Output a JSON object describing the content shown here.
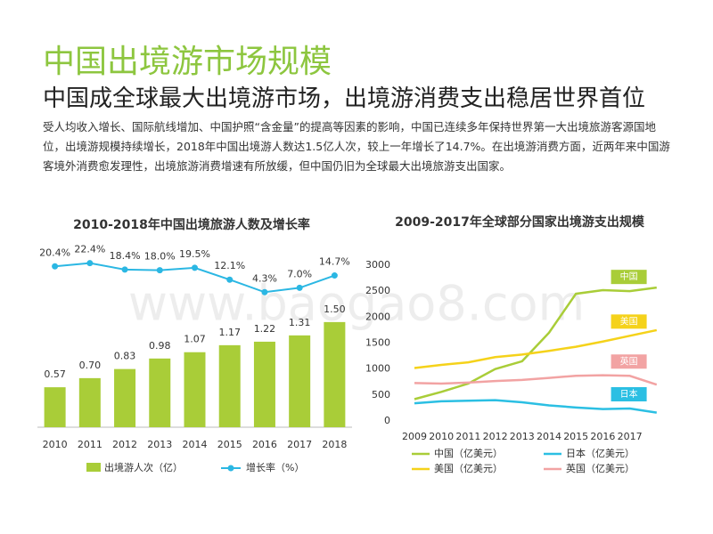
{
  "header": {
    "title": "中国出境游市场规模",
    "subtitle": "中国成全球最大出境游市场，出境游消费支出稳居世界首位"
  },
  "body": "受人均收入增长、国际航线增加、中国护照“含金量”的提高等因素的影响，中国已连续多年保持世界第一大出境旅游客源国地位，出境游规模持续增长，2018年中国出境游人数达1.5亿人次，较上一年增长了14.7%。在出境游消费方面，近两年来中国游客境外消费愈发理性，出境旅游消费增速有所放缓，但中国仍旧为全球最大出境旅游支出国家。",
  "watermark": "www.baogao8.com",
  "chart_data": [
    {
      "type": "bar",
      "title": "2010-2018年中国出境旅游人数及增长率",
      "categories": [
        "2010",
        "2011",
        "2012",
        "2013",
        "2014",
        "2015",
        "2016",
        "2017",
        "2018"
      ],
      "ylim": [
        0,
        1.6
      ],
      "y2lim": [
        -80,
        30
      ],
      "series": [
        {
          "name": "出境游人次（亿）",
          "color": "#a9cd38",
          "values": [
            0.57,
            0.7,
            0.83,
            0.98,
            1.07,
            1.17,
            1.22,
            1.31,
            1.5
          ],
          "value_labels": [
            "0.57",
            "0.70",
            "0.83",
            "0.98",
            "1.07",
            "1.17",
            "1.22",
            "1.31",
            "1.50"
          ]
        },
        {
          "name": "增长率（%）",
          "type": "line",
          "axis": "y2",
          "color": "#2bb7e3",
          "values": [
            20.4,
            22.4,
            18.4,
            18.0,
            19.5,
            12.1,
            4.3,
            7.0,
            14.7
          ],
          "value_labels": [
            "20.4%",
            "22.4%",
            "18.4%",
            "18.0%",
            "19.5%",
            "12.1%",
            "4.3%",
            "7.0%",
            "14.7%"
          ]
        }
      ]
    },
    {
      "type": "line",
      "title": "2009-2017年全球部分国家出境游支出规模",
      "categories": [
        "2009",
        "2010",
        "2011",
        "2012",
        "2013",
        "2014",
        "2015",
        "2016",
        "2017",
        null
      ],
      "ylim": [
        0,
        3000
      ],
      "yticks": [
        0,
        500,
        1000,
        1500,
        2000,
        2500,
        3000
      ],
      "series": [
        {
          "name": "中国（亿美元）",
          "label": "中国",
          "color": "#a9cd38",
          "values": [
            420,
            560,
            720,
            1000,
            1150,
            1700,
            2450,
            2520,
            2500,
            2570
          ]
        },
        {
          "name": "日本（亿美元）",
          "label": "日本",
          "color": "#2bbfe3",
          "values": [
            340,
            380,
            390,
            400,
            360,
            300,
            260,
            230,
            240,
            160
          ]
        },
        {
          "name": "美国（亿美元）",
          "label": "美国",
          "color": "#f5d21a",
          "values": [
            1020,
            1080,
            1130,
            1230,
            1280,
            1350,
            1430,
            1530,
            1640,
            1750
          ]
        },
        {
          "name": "英国（亿美元）",
          "label": "英国",
          "color": "#f2a3a3",
          "values": [
            730,
            720,
            740,
            770,
            790,
            830,
            870,
            880,
            870,
            700
          ]
        }
      ]
    }
  ]
}
